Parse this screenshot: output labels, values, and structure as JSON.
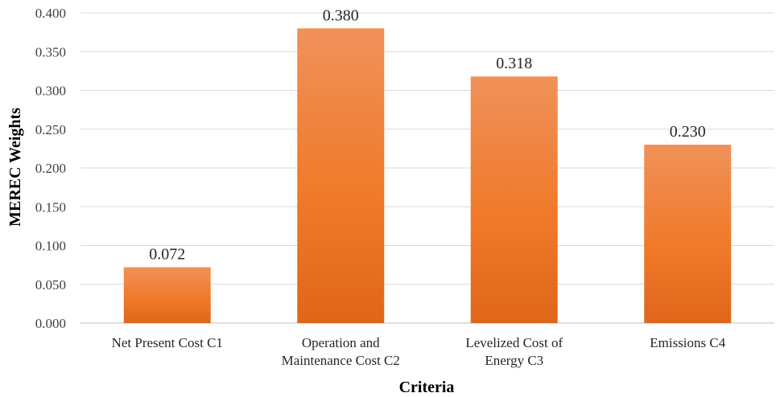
{
  "chart_data": {
    "type": "bar",
    "title": "",
    "xlabel": "Criteria",
    "ylabel": "MEREC Weights",
    "categories": [
      [
        "Net Present Cost C1"
      ],
      [
        "Operation and",
        "Maintenance Cost C2"
      ],
      [
        "Levelized Cost of",
        "Energy C3"
      ],
      [
        "Emissions C4"
      ]
    ],
    "values": [
      0.072,
      0.38,
      0.318,
      0.23
    ],
    "data_labels": [
      "0.072",
      "0.380",
      "0.318",
      "0.230"
    ],
    "ylim": [
      0,
      0.4
    ],
    "yticks": [
      "0.000",
      "0.050",
      "0.100",
      "0.150",
      "0.200",
      "0.250",
      "0.300",
      "0.350",
      "0.400"
    ],
    "grid": true,
    "legend": "none",
    "colors": {
      "bar_top": "#f0915a",
      "bar_mid": "#f07a2a",
      "bar_bottom": "#e0661a",
      "grid": "#d9d9d9",
      "axis": "#bfbfbf"
    }
  }
}
